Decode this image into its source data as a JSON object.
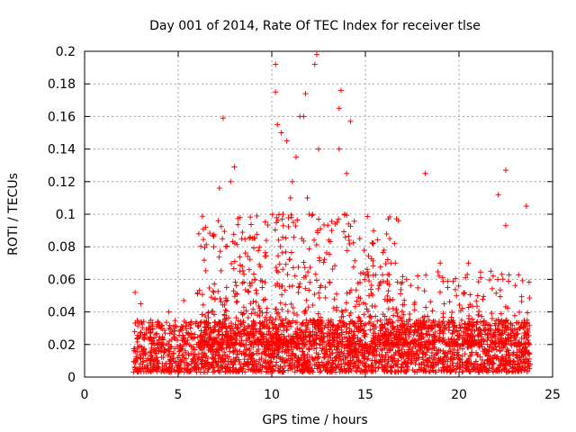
{
  "chart_data": {
    "type": "scatter",
    "title": "Day 001 of 2014, Rate Of TEC Index for receiver tlse",
    "xlabel": "GPS time / hours",
    "ylabel": "ROTI / TECUs",
    "xlim": [
      0,
      25
    ],
    "ylim": [
      0,
      0.2
    ],
    "x_ticks": [
      "0",
      "5",
      "10",
      "15",
      "20",
      "25"
    ],
    "y_ticks": [
      "0",
      "0.02",
      "0.04",
      "0.06",
      "0.08",
      "0.1",
      "0.12",
      "0.14",
      "0.16",
      "0.18",
      "0.2"
    ],
    "grid": true,
    "marker": "+",
    "color": "#ff0000",
    "time_range": [
      2.6,
      23.8
    ],
    "dense_band": [
      0.003,
      0.035
    ],
    "series": [
      {
        "name": "ROTI",
        "x": [
          7.4,
          10.2,
          10.2,
          12.4,
          12.3,
          11.8,
          13.7,
          13.6,
          11.5,
          11.7,
          10.3,
          14.2,
          10.5,
          10.8,
          12.5,
          13.6,
          11.3,
          14.0,
          7.2,
          8.0,
          18.2,
          22.5,
          22.1,
          23.6,
          6.9,
          7.8,
          11.0,
          11.1,
          11.9,
          12.0,
          13.2,
          13.9,
          14.7,
          10.6,
          16.3,
          16.6,
          17.2,
          19.0,
          20.5,
          21.7,
          9.1,
          8.3,
          22.5,
          6.1,
          5.3,
          4.5,
          3.0,
          2.7,
          19.4,
          21.0
        ],
        "y": [
          0.159,
          0.192,
          0.175,
          0.198,
          0.192,
          0.174,
          0.176,
          0.165,
          0.16,
          0.16,
          0.155,
          0.157,
          0.15,
          0.145,
          0.14,
          0.14,
          0.135,
          0.125,
          0.116,
          0.129,
          0.125,
          0.127,
          0.112,
          0.105,
          0.08,
          0.12,
          0.11,
          0.12,
          0.11,
          0.1,
          0.09,
          0.1,
          0.085,
          0.1,
          0.085,
          0.07,
          0.06,
          0.07,
          0.07,
          0.065,
          0.06,
          0.065,
          0.093,
          0.088,
          0.047,
          0.04,
          0.045,
          0.052,
          0.055,
          0.05
        ]
      }
    ]
  }
}
